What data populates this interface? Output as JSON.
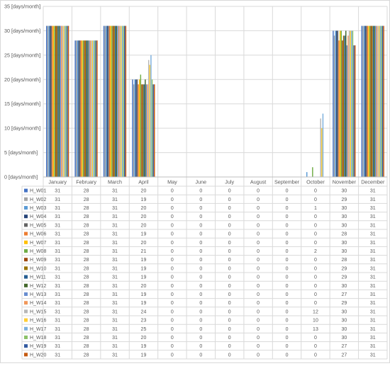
{
  "chart_data": {
    "type": "bar",
    "categories": [
      "January",
      "February",
      "March",
      "April",
      "May",
      "June",
      "July",
      "August",
      "September",
      "October",
      "November",
      "December"
    ],
    "y_unit": "[days/month]",
    "ylim": [
      0,
      35
    ],
    "yticks": [
      0,
      5,
      10,
      15,
      20,
      25,
      30,
      35
    ],
    "grid": true,
    "legend": "data table below chart",
    "series": [
      {
        "name": "H_W01",
        "color": "#4472c4",
        "values": [
          31,
          28,
          31,
          20,
          0,
          0,
          0,
          0,
          0,
          0,
          30,
          31
        ]
      },
      {
        "name": "H_W02",
        "color": "#a5a5a5",
        "values": [
          31,
          28,
          31,
          19,
          0,
          0,
          0,
          0,
          0,
          0,
          29,
          31
        ]
      },
      {
        "name": "H_W03",
        "color": "#5b9bd5",
        "values": [
          31,
          28,
          31,
          20,
          0,
          0,
          0,
          0,
          0,
          1,
          30,
          31
        ]
      },
      {
        "name": "H_W04",
        "color": "#264478",
        "values": [
          31,
          28,
          31,
          20,
          0,
          0,
          0,
          0,
          0,
          0,
          30,
          31
        ]
      },
      {
        "name": "H_W05",
        "color": "#636363",
        "values": [
          31,
          28,
          31,
          20,
          0,
          0,
          0,
          0,
          0,
          0,
          30,
          31
        ]
      },
      {
        "name": "H_W06",
        "color": "#ed7d31",
        "values": [
          31,
          28,
          31,
          19,
          0,
          0,
          0,
          0,
          0,
          0,
          28,
          31
        ]
      },
      {
        "name": "H_W07",
        "color": "#ffc000",
        "values": [
          31,
          28,
          31,
          20,
          0,
          0,
          0,
          0,
          0,
          0,
          30,
          31
        ]
      },
      {
        "name": "H_W08",
        "color": "#70ad47",
        "values": [
          31,
          28,
          31,
          21,
          0,
          0,
          0,
          0,
          0,
          2,
          30,
          31
        ]
      },
      {
        "name": "H_W09",
        "color": "#9e480e",
        "values": [
          31,
          28,
          31,
          19,
          0,
          0,
          0,
          0,
          0,
          0,
          28,
          31
        ]
      },
      {
        "name": "H_W10",
        "color": "#997300",
        "values": [
          31,
          28,
          31,
          19,
          0,
          0,
          0,
          0,
          0,
          0,
          29,
          31
        ]
      },
      {
        "name": "H_W11",
        "color": "#255e91",
        "values": [
          31,
          28,
          31,
          19,
          0,
          0,
          0,
          0,
          0,
          0,
          29,
          31
        ]
      },
      {
        "name": "H_W12",
        "color": "#43682b",
        "values": [
          31,
          28,
          31,
          20,
          0,
          0,
          0,
          0,
          0,
          0,
          30,
          31
        ]
      },
      {
        "name": "H_W13",
        "color": "#698ed0",
        "values": [
          31,
          28,
          31,
          19,
          0,
          0,
          0,
          0,
          0,
          0,
          27,
          31
        ]
      },
      {
        "name": "H_W14",
        "color": "#f1975a",
        "values": [
          31,
          28,
          31,
          19,
          0,
          0,
          0,
          0,
          0,
          0,
          29,
          31
        ]
      },
      {
        "name": "H_W15",
        "color": "#b7b7b7",
        "values": [
          31,
          28,
          31,
          24,
          0,
          0,
          0,
          0,
          0,
          12,
          30,
          31
        ]
      },
      {
        "name": "H_W16",
        "color": "#ffcd33",
        "values": [
          31,
          28,
          31,
          23,
          0,
          0,
          0,
          0,
          0,
          10,
          30,
          31
        ]
      },
      {
        "name": "H_W17",
        "color": "#7cafdd",
        "values": [
          31,
          28,
          31,
          25,
          0,
          0,
          0,
          0,
          0,
          13,
          30,
          31
        ]
      },
      {
        "name": "H_W18",
        "color": "#8cc168",
        "values": [
          31,
          28,
          31,
          20,
          0,
          0,
          0,
          0,
          0,
          0,
          30,
          31
        ]
      },
      {
        "name": "H_W19",
        "color": "#335aa1",
        "values": [
          31,
          28,
          31,
          19,
          0,
          0,
          0,
          0,
          0,
          0,
          27,
          31
        ]
      },
      {
        "name": "H_W20",
        "color": "#c55a11",
        "values": [
          31,
          28,
          31,
          19,
          0,
          0,
          0,
          0,
          0,
          0,
          27,
          31
        ]
      }
    ]
  }
}
